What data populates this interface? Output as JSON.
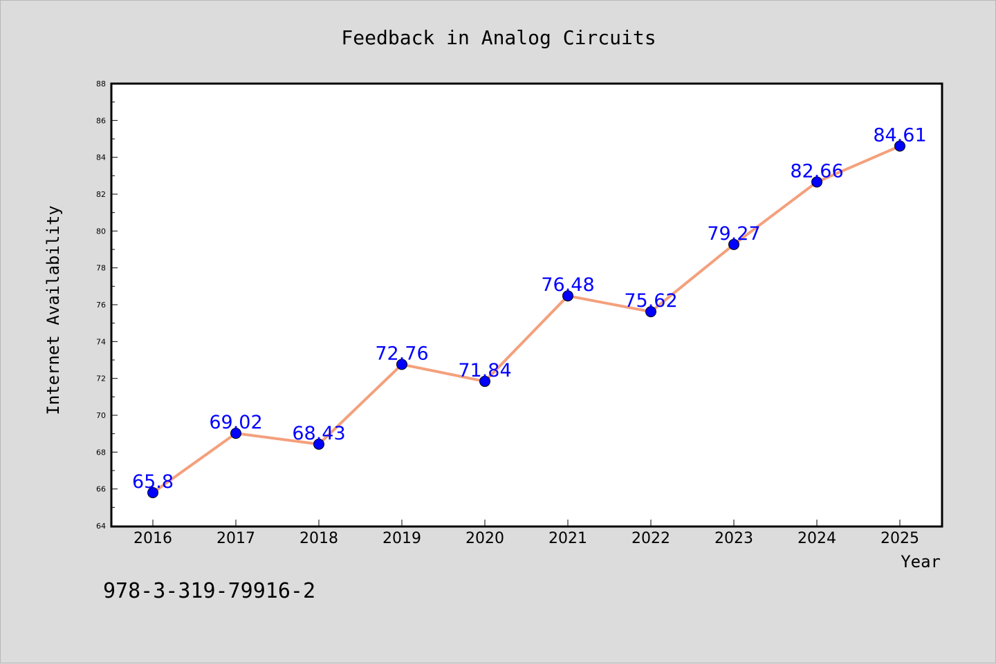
{
  "chart_data": {
    "type": "line",
    "title": "Feedback in Analog Circuits",
    "xlabel": "Year",
    "ylabel": "Internet Availability",
    "categories": [
      "2016",
      "2017",
      "2018",
      "2019",
      "2020",
      "2021",
      "2022",
      "2023",
      "2024",
      "2025"
    ],
    "series": [
      {
        "values": [
          65.8,
          69.02,
          68.43,
          72.76,
          71.84,
          76.48,
          75.62,
          79.27,
          82.66,
          84.61
        ]
      }
    ],
    "data_labels": [
      "65.8",
      "69.02",
      "68.43",
      "72.76",
      "71.84",
      "76.48",
      "75.62",
      "79.27",
      "82.66",
      "84.61"
    ],
    "ylim": [
      64,
      88
    ],
    "yticks": [
      64,
      66,
      68,
      70,
      72,
      74,
      76,
      78,
      80,
      82,
      84,
      86,
      88
    ],
    "grid": false,
    "legend": "none",
    "colors": {
      "line": "#f4a07c",
      "marker": "#0000ff",
      "label": "#0000ff",
      "background": "#dcdcdc",
      "plot_background": "#ffffff"
    }
  },
  "annotation": "978-3-319-79916-2"
}
